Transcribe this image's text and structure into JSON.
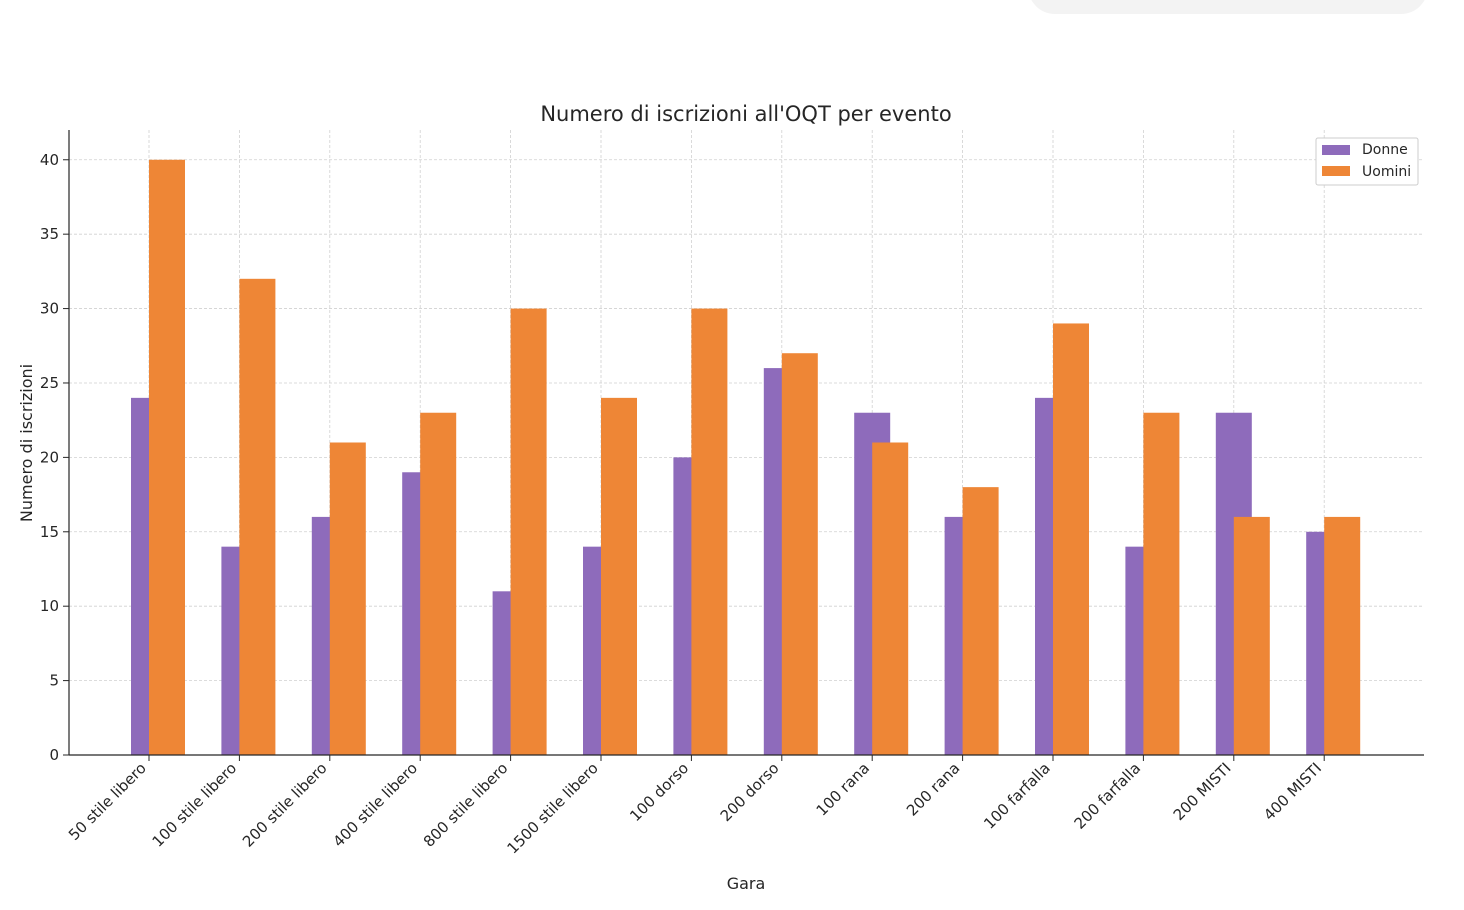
{
  "chart_data": {
    "type": "bar",
    "title": "Numero di iscrizioni all'OQT per evento",
    "xlabel": "Gara",
    "ylabel": "Numero di iscrizioni",
    "categories": [
      "50 stile libero",
      "100 stile libero",
      "200 stile libero",
      "400 stile libero",
      "800 stile libero",
      "1500 stile libero",
      "100 dorso",
      "200 dorso",
      "100 rana",
      "200 rana",
      "100 farfalla",
      "200 farfalla",
      "200 MISTI",
      "400 MISTI"
    ],
    "series": [
      {
        "name": "Donne",
        "color": "#8e6bbb",
        "values": [
          24,
          14,
          16,
          19,
          11,
          14,
          20,
          26,
          23,
          16,
          24,
          14,
          23,
          15
        ]
      },
      {
        "name": "Uomini",
        "color": "#ee8636",
        "values": [
          40,
          32,
          21,
          23,
          30,
          24,
          30,
          27,
          21,
          18,
          29,
          23,
          16,
          16
        ]
      }
    ],
    "ylim": [
      0,
      42
    ],
    "yticks": [
      0,
      5,
      10,
      15,
      20,
      25,
      30,
      35,
      40
    ],
    "grid": true,
    "legend_position": "top-right"
  }
}
